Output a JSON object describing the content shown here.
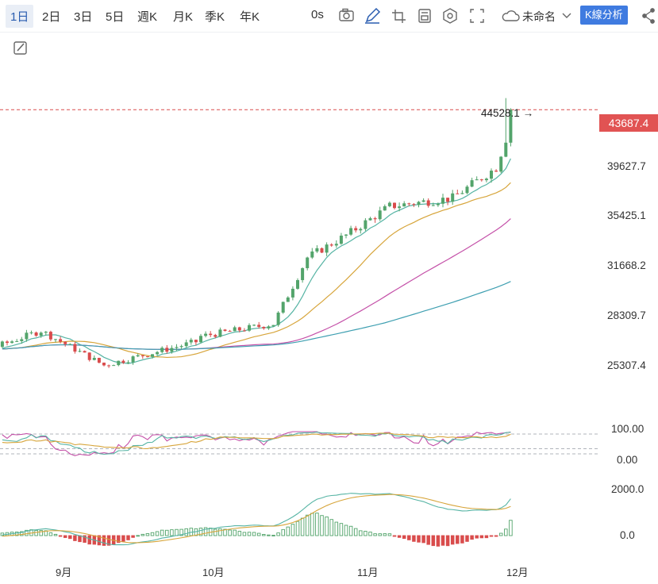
{
  "toolbar": {
    "periods": [
      "1日",
      "2日",
      "3日",
      "5日",
      "週K",
      "月K",
      "季K",
      "年K"
    ],
    "active_period": "1日",
    "countdown": "0s",
    "layout_name": "未命名",
    "analysis_button": "K線分析",
    "icons": [
      "camera-icon",
      "pencil-icon",
      "crop-icon",
      "calculator-icon",
      "settings-icon",
      "fullscreen-icon",
      "cloud-icon",
      "chevron-down-icon",
      "share-icon",
      "drawing-tool-icon"
    ]
  },
  "colors": {
    "up": "#53a46b",
    "down": "#d94c4c",
    "ma_short": "#56b4a4",
    "ma_mid": "#d7a53b",
    "ma_long": "#c450a8",
    "ma_longer": "#3e9fb1",
    "accent": "#3f7be0"
  },
  "chart_data": [
    {
      "type": "candlestick",
      "last_price": "43687.4",
      "high_marker": "44528.1",
      "y_ticks": [
        "39627.7",
        "35425.1",
        "31668.2",
        "28309.7",
        "25307.4"
      ],
      "x_ticks": [
        "9月",
        "10月",
        "11月",
        "12月"
      ],
      "grid": false,
      "moving_average_lines": 4,
      "close_path": [
        {
          "date": "2023-08-17",
          "close": 26200
        },
        {
          "date": "2023-08-29",
          "close": 27700
        },
        {
          "date": "2023-09-11",
          "close": 25200
        },
        {
          "date": "2023-09-30",
          "close": 26900
        },
        {
          "date": "2023-10-01",
          "close": 27300
        },
        {
          "date": "2023-10-16",
          "close": 28200
        },
        {
          "date": "2023-10-23",
          "close": 33000
        },
        {
          "date": "2023-10-31",
          "close": 34600
        },
        {
          "date": "2023-11-09",
          "close": 36700
        },
        {
          "date": "2023-11-22",
          "close": 37300
        },
        {
          "date": "2023-12-01",
          "close": 39500
        },
        {
          "date": "2023-12-05",
          "close": 43687.4
        }
      ]
    },
    {
      "type": "line",
      "indicator_panel": "oscillator",
      "y_ticks": [
        "100.00",
        "0.00"
      ]
    },
    {
      "type": "bar",
      "indicator_panel": "macd",
      "y_ticks": [
        "2000.0",
        "0.0"
      ]
    }
  ]
}
